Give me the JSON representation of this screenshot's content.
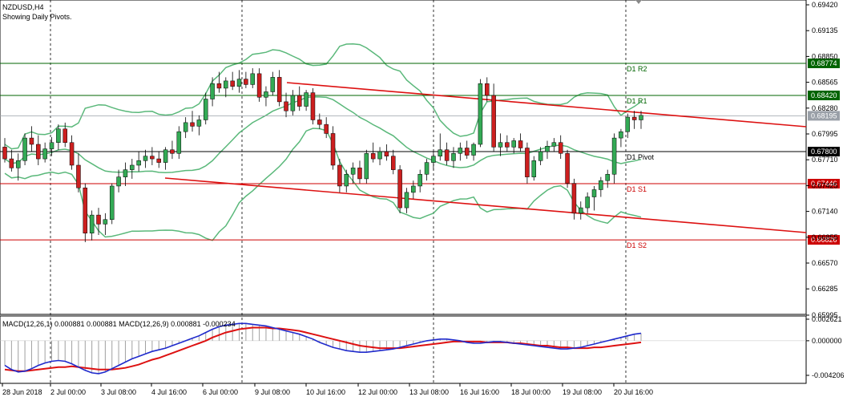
{
  "header": {
    "symbol": "NZDUSD,H4",
    "subtitle": "Showing Daily Pivots."
  },
  "indicator": {
    "label": "MACD(12,26,1) 0.000881 0.000881 MACD(12,26,9) 0.000881 -0.000234"
  },
  "price_axis": {
    "ticks": [
      "0.69420",
      "0.69135",
      "0.68850",
      "0.68565",
      "0.68280",
      "0.67995",
      "0.67710",
      "0.67425",
      "0.67140",
      "0.66855",
      "0.66570",
      "0.66285",
      "0.65995"
    ]
  },
  "macd_axis": {
    "ticks": [
      "0.002621",
      "0.000000",
      "-0.004206"
    ]
  },
  "time_axis": {
    "ticks": [
      "28 Jun 2018",
      "2 Jul 00:00",
      "3 Jul 08:00",
      "4 Jul 16:00",
      "6 Jul 00:00",
      "9 Jul 08:00",
      "10 Jul 16:00",
      "12 Jul 00:00",
      "13 Jul 08:00",
      "16 Jul 16:00",
      "18 Jul 00:00",
      "19 Jul 08:00",
      "20 Jul 16:00"
    ]
  },
  "pivots": [
    {
      "label": "D1 R2",
      "value": "0.68774",
      "color": "#006400"
    },
    {
      "label": "D1 R1",
      "value": "0.68420",
      "color": "#006400"
    },
    {
      "label": "D1 Pivot",
      "value": "0.67800",
      "color": "#000000"
    },
    {
      "label": "D1 S1",
      "value": "0.67446",
      "color": "#cc0000"
    },
    {
      "label": "D1 S2",
      "value": "0.66826",
      "color": "#cc0000"
    }
  ],
  "current_price": {
    "value": "0.68195",
    "color": "#9aa0a8"
  },
  "colors": {
    "bull": "#33aa55",
    "bear": "#cc1f1f",
    "bands": "#5ab87a",
    "channel": "#dd1111",
    "macd_main": "#1f2acc",
    "macd_signal": "#dd1111",
    "histogram": "#a0a0a0"
  },
  "chart_data": {
    "type": "candlestick",
    "title": "NZDUSD,H4",
    "y_range": [
      0.659,
      0.6952
    ],
    "candles": [
      [
        0.6785,
        0.6795,
        0.6768,
        0.6772
      ],
      [
        0.6772,
        0.6782,
        0.6758,
        0.6762
      ],
      [
        0.6762,
        0.6778,
        0.6748,
        0.677
      ],
      [
        0.677,
        0.68,
        0.6765,
        0.6795
      ],
      [
        0.6795,
        0.6808,
        0.678,
        0.6788
      ],
      [
        0.6788,
        0.6798,
        0.6765,
        0.6772
      ],
      [
        0.6772,
        0.679,
        0.6768,
        0.6783
      ],
      [
        0.6783,
        0.6796,
        0.6775,
        0.679
      ],
      [
        0.679,
        0.681,
        0.6782,
        0.6805
      ],
      [
        0.6805,
        0.6812,
        0.6785,
        0.679
      ],
      [
        0.679,
        0.6798,
        0.676,
        0.6765
      ],
      [
        0.6765,
        0.6778,
        0.6735,
        0.674
      ],
      [
        0.674,
        0.6745,
        0.668,
        0.669
      ],
      [
        0.669,
        0.6715,
        0.6682,
        0.671
      ],
      [
        0.671,
        0.6718,
        0.6688,
        0.67
      ],
      [
        0.67,
        0.6712,
        0.6688,
        0.6705
      ],
      [
        0.6705,
        0.6745,
        0.67,
        0.6742
      ],
      [
        0.6742,
        0.676,
        0.6735,
        0.6752
      ],
      [
        0.6752,
        0.6768,
        0.6742,
        0.676
      ],
      [
        0.676,
        0.6772,
        0.675,
        0.6765
      ],
      [
        0.6765,
        0.678,
        0.6758,
        0.677
      ],
      [
        0.677,
        0.6782,
        0.6762,
        0.6775
      ],
      [
        0.6775,
        0.6785,
        0.6765,
        0.6772
      ],
      [
        0.6772,
        0.678,
        0.6762,
        0.6768
      ],
      [
        0.6768,
        0.6785,
        0.676,
        0.6782
      ],
      [
        0.6782,
        0.6792,
        0.6772,
        0.6778
      ],
      [
        0.6778,
        0.6808,
        0.6772,
        0.6802
      ],
      [
        0.6802,
        0.6818,
        0.6795,
        0.6812
      ],
      [
        0.6812,
        0.6825,
        0.6802,
        0.6808
      ],
      [
        0.6808,
        0.682,
        0.6798,
        0.6815
      ],
      [
        0.6815,
        0.6845,
        0.681,
        0.6838
      ],
      [
        0.6838,
        0.6862,
        0.683,
        0.6855
      ],
      [
        0.6855,
        0.6868,
        0.6845,
        0.685
      ],
      [
        0.685,
        0.6862,
        0.684,
        0.6858
      ],
      [
        0.6858,
        0.6868,
        0.6848,
        0.6852
      ],
      [
        0.6852,
        0.687,
        0.6845,
        0.686
      ],
      [
        0.686,
        0.6868,
        0.685,
        0.6854
      ],
      [
        0.6854,
        0.6872,
        0.685,
        0.6866
      ],
      [
        0.6866,
        0.6872,
        0.6835,
        0.684
      ],
      [
        0.684,
        0.6852,
        0.683,
        0.6846
      ],
      [
        0.6846,
        0.6868,
        0.6842,
        0.6862
      ],
      [
        0.6862,
        0.687,
        0.683,
        0.6835
      ],
      [
        0.6835,
        0.6845,
        0.6818,
        0.6825
      ],
      [
        0.6825,
        0.6848,
        0.682,
        0.6842
      ],
      [
        0.6842,
        0.6852,
        0.6825,
        0.683
      ],
      [
        0.683,
        0.6848,
        0.6825,
        0.6845
      ],
      [
        0.6845,
        0.685,
        0.681,
        0.6815
      ],
      [
        0.6815,
        0.6822,
        0.6805,
        0.681
      ],
      [
        0.681,
        0.6818,
        0.6795,
        0.68
      ],
      [
        0.68,
        0.6808,
        0.676,
        0.6765
      ],
      [
        0.6765,
        0.6772,
        0.6735,
        0.6742
      ],
      [
        0.6742,
        0.676,
        0.6735,
        0.6755
      ],
      [
        0.6755,
        0.6768,
        0.6745,
        0.6762
      ],
      [
        0.6762,
        0.677,
        0.6745,
        0.675
      ],
      [
        0.675,
        0.6782,
        0.6745,
        0.6778
      ],
      [
        0.6778,
        0.679,
        0.6768,
        0.6772
      ],
      [
        0.6772,
        0.6785,
        0.6765,
        0.678
      ],
      [
        0.678,
        0.6788,
        0.677,
        0.6775
      ],
      [
        0.6775,
        0.6782,
        0.6755,
        0.676
      ],
      [
        0.676,
        0.6765,
        0.6712,
        0.6718
      ],
      [
        0.6718,
        0.674,
        0.6712,
        0.6735
      ],
      [
        0.6735,
        0.6748,
        0.6728,
        0.6742
      ],
      [
        0.6742,
        0.676,
        0.6735,
        0.6755
      ],
      [
        0.6755,
        0.6772,
        0.6748,
        0.6768
      ],
      [
        0.6768,
        0.678,
        0.676,
        0.6775
      ],
      [
        0.6775,
        0.68,
        0.677,
        0.6782
      ],
      [
        0.6782,
        0.679,
        0.6765,
        0.677
      ],
      [
        0.677,
        0.6785,
        0.6762,
        0.6778
      ],
      [
        0.6778,
        0.679,
        0.677,
        0.6784
      ],
      [
        0.6784,
        0.6792,
        0.6772,
        0.6776
      ],
      [
        0.6776,
        0.679,
        0.677,
        0.6788
      ],
      [
        0.6788,
        0.686,
        0.6785,
        0.6855
      ],
      [
        0.6855,
        0.6862,
        0.6835,
        0.6842
      ],
      [
        0.6842,
        0.6855,
        0.678,
        0.6785
      ],
      [
        0.6785,
        0.68,
        0.6775,
        0.679
      ],
      [
        0.679,
        0.6798,
        0.678,
        0.6785
      ],
      [
        0.6785,
        0.6795,
        0.6778,
        0.6792
      ],
      [
        0.6792,
        0.68,
        0.678,
        0.6784
      ],
      [
        0.6784,
        0.679,
        0.6745,
        0.6752
      ],
      [
        0.6752,
        0.6775,
        0.6748,
        0.677
      ],
      [
        0.677,
        0.6785,
        0.6765,
        0.678
      ],
      [
        0.678,
        0.6792,
        0.6772,
        0.6786
      ],
      [
        0.6786,
        0.6795,
        0.678,
        0.679
      ],
      [
        0.679,
        0.6798,
        0.6772,
        0.6778
      ],
      [
        0.6778,
        0.6782,
        0.674,
        0.6745
      ],
      [
        0.6745,
        0.675,
        0.6705,
        0.6712
      ],
      [
        0.6712,
        0.6725,
        0.6705,
        0.6718
      ],
      [
        0.6718,
        0.6735,
        0.6712,
        0.673
      ],
      [
        0.673,
        0.6742,
        0.6715,
        0.6738
      ],
      [
        0.6738,
        0.6752,
        0.673,
        0.6748
      ],
      [
        0.6748,
        0.676,
        0.674,
        0.6755
      ],
      [
        0.6755,
        0.68,
        0.6745,
        0.6795
      ],
      [
        0.6795,
        0.6805,
        0.6785,
        0.6802
      ],
      [
        0.6802,
        0.6822,
        0.6795,
        0.6818
      ],
      [
        0.6818,
        0.6825,
        0.6805,
        0.6815
      ],
      [
        0.6815,
        0.6825,
        0.6805,
        0.682
      ]
    ],
    "macd": [
      -0.003,
      -0.0035,
      -0.0038,
      -0.0037,
      -0.0034,
      -0.003,
      -0.0027,
      -0.0025,
      -0.0024,
      -0.0025,
      -0.0028,
      -0.0032,
      -0.0036,
      -0.0039,
      -0.004,
      -0.0038,
      -0.0034,
      -0.003,
      -0.0026,
      -0.0022,
      -0.0019,
      -0.0016,
      -0.0013,
      -0.0011,
      -0.0009,
      -0.0006,
      -0.0003,
      0.0,
      0.0003,
      0.0006,
      0.001,
      0.0014,
      0.0017,
      0.0019,
      0.002,
      0.0021,
      0.0021,
      0.002,
      0.0019,
      0.0018,
      0.0016,
      0.0014,
      0.0012,
      0.001,
      0.0008,
      0.0005,
      0.0002,
      -0.0002,
      -0.0005,
      -0.0008,
      -0.001,
      -0.0012,
      -0.0013,
      -0.0014,
      -0.0014,
      -0.0013,
      -0.0012,
      -0.0011,
      -0.001,
      -0.0008,
      -0.0006,
      -0.0004,
      -0.0002,
      0.0,
      0.0001,
      0.0002,
      0.0002,
      0.0001,
      0.0,
      -0.0002,
      -0.0003,
      -0.0003,
      -0.0002,
      -0.0001,
      -0.0001,
      -0.0002,
      -0.0003,
      -0.0004,
      -0.0005,
      -0.0006,
      -0.0007,
      -0.0008,
      -0.0009,
      -0.001,
      -0.001,
      -0.0009,
      -0.0008,
      -0.0006,
      -0.0004,
      -0.0002,
      0.0,
      0.0002,
      0.0004,
      0.0006,
      0.0008,
      0.0009
    ],
    "signal": [
      -0.0035,
      -0.0036,
      -0.0037,
      -0.0037,
      -0.0036,
      -0.0035,
      -0.0034,
      -0.0033,
      -0.0032,
      -0.0032,
      -0.0031,
      -0.0032,
      -0.0033,
      -0.0034,
      -0.0035,
      -0.0035,
      -0.0035,
      -0.0034,
      -0.0033,
      -0.0031,
      -0.0029,
      -0.0026,
      -0.0023,
      -0.0021,
      -0.0018,
      -0.0015,
      -0.0012,
      -0.0009,
      -0.0006,
      -0.0003,
      0.0,
      0.0004,
      0.0007,
      0.001,
      0.0012,
      0.0014,
      0.0015,
      0.0016,
      0.0016,
      0.0016,
      0.0015,
      0.0015,
      0.0014,
      0.0013,
      0.0012,
      0.001,
      0.0008,
      0.0006,
      0.0004,
      0.0002,
      0.0,
      -0.0002,
      -0.0004,
      -0.0006,
      -0.0007,
      -0.0008,
      -0.0009,
      -0.0009,
      -0.0009,
      -0.0009,
      -0.0008,
      -0.0007,
      -0.0006,
      -0.0005,
      -0.0004,
      -0.0003,
      -0.0002,
      -0.0001,
      -0.0001,
      -0.0001,
      -0.0001,
      -0.0001,
      -0.0002,
      -0.0002,
      -0.0002,
      -0.0002,
      -0.0003,
      -0.0003,
      -0.0004,
      -0.0005,
      -0.0006,
      -0.0006,
      -0.0007,
      -0.0008,
      -0.0008,
      -0.0009,
      -0.0009,
      -0.0009,
      -0.0008,
      -0.0008,
      -0.0007,
      -0.0006,
      -0.0005,
      -0.0004,
      -0.0003,
      -0.0002
    ],
    "macd_range": [
      -0.004206,
      0.002621
    ]
  }
}
